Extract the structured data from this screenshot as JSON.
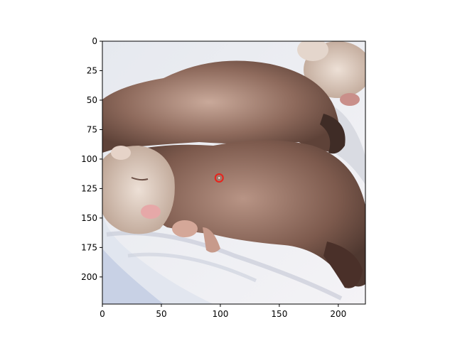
{
  "chart_data": {
    "type": "image",
    "image_content": "ferrets",
    "xlim": [
      0,
      223
    ],
    "ylim": [
      223,
      0
    ],
    "x_ticks": [
      0,
      50,
      100,
      150,
      200
    ],
    "y_ticks": [
      0,
      25,
      50,
      75,
      100,
      125,
      150,
      175,
      200
    ],
    "x_tick_labels": [
      "0",
      "50",
      "100",
      "150",
      "200"
    ],
    "y_tick_labels": [
      "0",
      "25",
      "50",
      "75",
      "100",
      "125",
      "150",
      "175",
      "200"
    ],
    "marker": {
      "x": 99,
      "y": 116,
      "shape": "circle",
      "color": "#e8231c"
    },
    "grid": false,
    "title": "",
    "xlabel": "",
    "ylabel": ""
  }
}
